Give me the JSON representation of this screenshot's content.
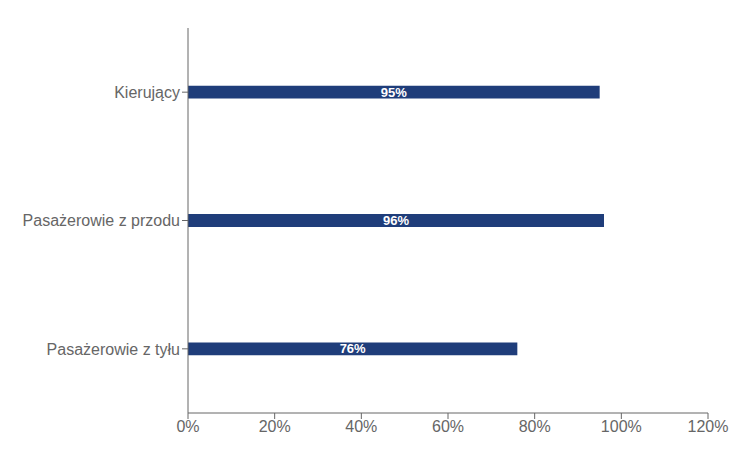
{
  "chart_data": {
    "type": "bar",
    "orientation": "horizontal",
    "categories": [
      "Pasażerowie z tyłu",
      "Pasażerowie z przodu",
      "Kierujący"
    ],
    "values": [
      0.76,
      0.96,
      0.95
    ],
    "value_labels": [
      "76%",
      "96%",
      "95%"
    ],
    "data_labels": true,
    "color": "#1F3D7A",
    "xlim": [
      0,
      1.2
    ],
    "xticks": [
      {
        "value": 0,
        "label": "0%"
      },
      {
        "value": 0.2,
        "label": "20%"
      },
      {
        "value": 0.4,
        "label": "40%"
      },
      {
        "value": 0.6,
        "label": "60%"
      },
      {
        "value": 0.8,
        "label": "80%"
      },
      {
        "value": 1.0,
        "label": "100%"
      },
      {
        "value": 1.2,
        "label": "120%"
      }
    ],
    "grid": false
  }
}
